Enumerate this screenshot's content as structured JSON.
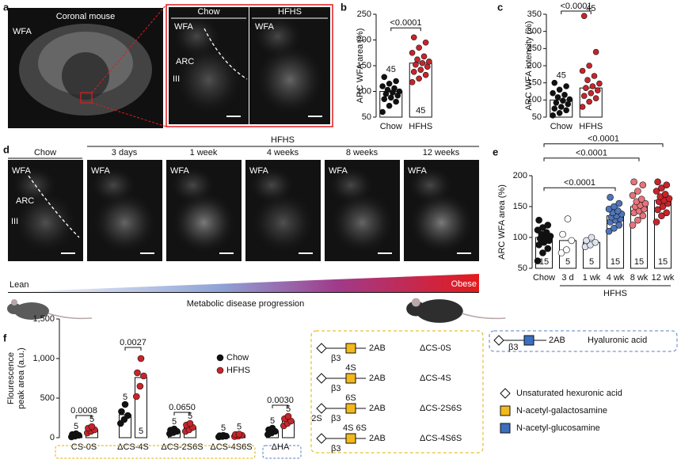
{
  "panel_labels": [
    "a",
    "b",
    "c",
    "d",
    "e",
    "f"
  ],
  "panel_a": {
    "brain_title": "Coronal mouse",
    "stain": "WFA",
    "columns": [
      "Chow",
      "HFHS"
    ],
    "regions": [
      "ARC",
      "III"
    ]
  },
  "panel_d": {
    "group": "HFHS",
    "columns": [
      "Chow",
      "3 days",
      "1 week",
      "4 weeks",
      "8 weeks",
      "12 weeks"
    ],
    "stain": "WFA",
    "regions": [
      "ARC",
      "III"
    ]
  },
  "progression": {
    "start": "Lean",
    "end": "Obese",
    "label": "Metabolic disease progression"
  },
  "chart_data": [
    {
      "type": "bar",
      "ylabel": [
        "ARC WFA area (%)"
      ],
      "categories": [
        "Chow",
        "HFHS"
      ],
      "values": [
        100,
        155
      ],
      "point_colors": [
        "#111111",
        "#c6252b"
      ],
      "n": [
        45,
        45
      ],
      "p_value": "<0.0001",
      "points": [
        [
          60,
          72,
          80,
          85,
          88,
          92,
          95,
          98,
          100,
          103,
          106,
          110,
          115,
          120,
          128
        ],
        [
          118,
          125,
          132,
          138,
          142,
          148,
          152,
          155,
          158,
          162,
          168,
          175,
          185,
          195,
          205
        ]
      ],
      "ylim": [
        50,
        250
      ],
      "yticks": [
        50,
        100,
        150,
        200,
        250
      ]
    },
    {
      "type": "bar",
      "ylabel": [
        "ARC WFA intensity (%)"
      ],
      "categories": [
        "Chow",
        "HFHS"
      ],
      "values": [
        100,
        135
      ],
      "point_colors": [
        "#111111",
        "#c6252b"
      ],
      "n": [
        45,
        45
      ],
      "p_value": "<0.0001",
      "points": [
        [
          55,
          62,
          70,
          75,
          80,
          88,
          92,
          98,
          102,
          108,
          115,
          120,
          130,
          140,
          150
        ],
        [
          80,
          95,
          105,
          112,
          120,
          128,
          135,
          140,
          148,
          158,
          170,
          185,
          200,
          240,
          345
        ]
      ],
      "ylim": [
        50,
        350
      ],
      "yticks": [
        50,
        100,
        150,
        200,
        250,
        300,
        350
      ]
    },
    {
      "type": "bar",
      "ylabel": [
        "ARC WFA area (%)"
      ],
      "categories": [
        "Chow",
        "3 d",
        "1 wk",
        "4 wk",
        "8 wk",
        "12 wk"
      ],
      "group_label": "HFHS",
      "values": [
        100,
        95,
        92,
        135,
        150,
        160
      ],
      "point_colors": [
        "#111111",
        "#ffffff",
        "#dfe3ef",
        "#4f74b8",
        "#e8737b",
        "#c6252b"
      ],
      "n": [
        15,
        5,
        5,
        15,
        15,
        15
      ],
      "p_values": [
        null,
        null,
        null,
        "<0.0001",
        "<0.0001",
        "<0.0001"
      ],
      "points": [
        [
          62,
          75,
          82,
          88,
          92,
          95,
          98,
          100,
          102,
          105,
          108,
          112,
          116,
          120,
          128
        ],
        [
          75,
          80,
          95,
          105,
          130
        ],
        [
          85,
          88,
          92,
          95,
          100
        ],
        [
          110,
          115,
          120,
          125,
          128,
          130,
          133,
          135,
          138,
          140,
          143,
          146,
          150,
          155,
          165
        ],
        [
          120,
          128,
          135,
          140,
          143,
          146,
          150,
          152,
          155,
          158,
          162,
          168,
          175,
          185,
          190
        ],
        [
          125,
          135,
          140,
          145,
          150,
          155,
          158,
          160,
          163,
          166,
          170,
          175,
          180,
          185,
          190
        ]
      ],
      "ylim": [
        50,
        200
      ],
      "yticks": [
        50,
        100,
        150,
        200
      ]
    },
    {
      "type": "bar",
      "ylabel": [
        "Flourescence",
        "peak area (a.u.)"
      ],
      "categories": [
        "CS-0S",
        "ΔCS-4S",
        "ΔCS-2S6S",
        "ΔCS-4S6S",
        "ΔHA"
      ],
      "p_values": [
        "0.0008",
        "0.0027",
        "0.0650",
        null,
        "0.0030"
      ],
      "series": [
        {
          "name": "Chow",
          "color": "#111111",
          "values": [
            30,
            290,
            80,
            20,
            80
          ],
          "n": [
            5,
            5,
            5,
            5,
            5
          ],
          "points": [
            [
              10,
              20,
              30,
              40,
              50
            ],
            [
              180,
              230,
              280,
              330,
              420
            ],
            [
              50,
              65,
              80,
              95,
              110
            ],
            [
              10,
              15,
              20,
              25,
              30
            ],
            [
              40,
              60,
              80,
              100,
              120
            ]
          ]
        },
        {
          "name": "HFHS",
          "color": "#c6252b",
          "values": [
            100,
            760,
            130,
            30,
            210
          ],
          "n": [
            5,
            5,
            5,
            5,
            5
          ],
          "points": [
            [
              60,
              80,
              100,
              120,
              140
            ],
            [
              520,
              650,
              780,
              820,
              1000
            ],
            [
              80,
              100,
              130,
              160,
              180
            ],
            [
              15,
              20,
              30,
              40,
              45
            ],
            [
              150,
              180,
              210,
              240,
              270
            ]
          ]
        }
      ],
      "ylim": [
        0,
        1500
      ],
      "yticks": [
        0,
        500,
        {
          "value": 1000,
          "label": "1,000"
        },
        {
          "value": 1500,
          "label": "1,500"
        }
      ]
    }
  ],
  "glycan_legend": {
    "rows": [
      {
        "linkage": "β3",
        "sulfation": [],
        "end": "2AB",
        "name": "ΔCS-0S"
      },
      {
        "linkage": "β3",
        "sulfation": [
          "4S"
        ],
        "end": "2AB",
        "name": "ΔCS-4S"
      },
      {
        "linkage": "β3",
        "sulfation": [
          "6S",
          "2S"
        ],
        "end": "2AB",
        "name": "ΔCS-2S6S"
      },
      {
        "linkage": "β3",
        "sulfation": [
          "4S 6S"
        ],
        "end": "2AB",
        "name": "ΔCS-4S6S"
      }
    ],
    "hyaluronic": {
      "linkage": "β3",
      "end": "2AB",
      "name": "Hyaluronic acid"
    },
    "key": [
      "Unsaturated hexuronic acid",
      "N-acetyl-galactosamine",
      "N-acetyl-glucosamine"
    ]
  }
}
